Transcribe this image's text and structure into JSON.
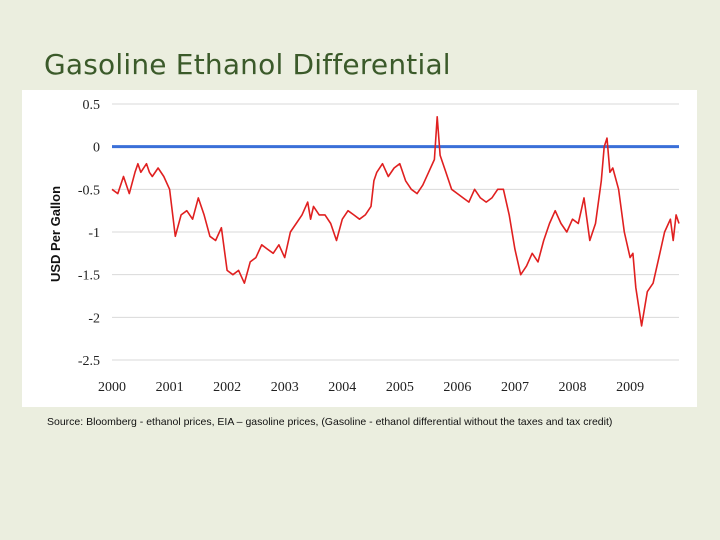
{
  "slide": {
    "title": "Gasoline Ethanol Differential",
    "source": "Source: Bloomberg - ethanol prices, EIA – gasoline prices, (Gasoline - ethanol differential without the taxes and tax credit)"
  },
  "chart_data": {
    "type": "line",
    "title": "",
    "xlabel": "",
    "ylabel": "USD Per Gallon",
    "xlim": [
      2000,
      2009.85
    ],
    "ylim": [
      -2.5,
      0.5
    ],
    "x_ticks": [
      "2000",
      "2001",
      "2002",
      "2003",
      "2004",
      "2005",
      "2006",
      "2007",
      "2008",
      "2009"
    ],
    "y_ticks": [
      "0.5",
      "0",
      "-0.5",
      "-1",
      "-1.5",
      "-2",
      "-2.5"
    ],
    "grid": "horizontal",
    "reference_line": {
      "y": 0,
      "color": "#3a6fd8"
    },
    "series": [
      {
        "color": "#e02020",
        "x": [
          2000.0,
          2000.1,
          2000.2,
          2000.3,
          2000.4,
          2000.45,
          2000.5,
          2000.6,
          2000.65,
          2000.7,
          2000.8,
          2000.9,
          2001.0,
          2001.1,
          2001.2,
          2001.3,
          2001.4,
          2001.5,
          2001.6,
          2001.7,
          2001.8,
          2001.9,
          2002.0,
          2002.1,
          2002.2,
          2002.3,
          2002.4,
          2002.5,
          2002.6,
          2002.7,
          2002.8,
          2002.9,
          2003.0,
          2003.1,
          2003.2,
          2003.3,
          2003.4,
          2003.45,
          2003.5,
          2003.6,
          2003.7,
          2003.8,
          2003.9,
          2004.0,
          2004.1,
          2004.2,
          2004.3,
          2004.4,
          2004.5,
          2004.55,
          2004.6,
          2004.7,
          2004.8,
          2004.9,
          2005.0,
          2005.1,
          2005.2,
          2005.3,
          2005.4,
          2005.5,
          2005.6,
          2005.65,
          2005.7,
          2005.8,
          2005.9,
          2006.0,
          2006.1,
          2006.2,
          2006.3,
          2006.4,
          2006.5,
          2006.6,
          2006.7,
          2006.8,
          2006.9,
          2007.0,
          2007.1,
          2007.2,
          2007.3,
          2007.4,
          2007.5,
          2007.6,
          2007.7,
          2007.8,
          2007.9,
          2008.0,
          2008.1,
          2008.2,
          2008.3,
          2008.4,
          2008.5,
          2008.55,
          2008.6,
          2008.65,
          2008.7,
          2008.8,
          2008.9,
          2009.0,
          2009.05,
          2009.1,
          2009.2,
          2009.3,
          2009.4,
          2009.5,
          2009.6,
          2009.7,
          2009.75,
          2009.8,
          2009.85
        ],
        "y": [
          -0.5,
          -0.55,
          -0.35,
          -0.55,
          -0.3,
          -0.2,
          -0.3,
          -0.2,
          -0.3,
          -0.35,
          -0.25,
          -0.35,
          -0.5,
          -1.05,
          -0.8,
          -0.75,
          -0.85,
          -0.6,
          -0.8,
          -1.05,
          -1.1,
          -0.95,
          -1.45,
          -1.5,
          -1.45,
          -1.6,
          -1.35,
          -1.3,
          -1.15,
          -1.2,
          -1.25,
          -1.15,
          -1.3,
          -1.0,
          -0.9,
          -0.8,
          -0.65,
          -0.85,
          -0.7,
          -0.8,
          -0.8,
          -0.9,
          -1.1,
          -0.85,
          -0.75,
          -0.8,
          -0.85,
          -0.8,
          -0.7,
          -0.4,
          -0.3,
          -0.2,
          -0.35,
          -0.25,
          -0.2,
          -0.4,
          -0.5,
          -0.55,
          -0.45,
          -0.3,
          -0.15,
          0.35,
          -0.1,
          -0.3,
          -0.5,
          -0.55,
          -0.6,
          -0.65,
          -0.5,
          -0.6,
          -0.65,
          -0.6,
          -0.5,
          -0.5,
          -0.8,
          -1.2,
          -1.5,
          -1.4,
          -1.25,
          -1.35,
          -1.1,
          -0.9,
          -0.75,
          -0.9,
          -1.0,
          -0.85,
          -0.9,
          -0.6,
          -1.1,
          -0.9,
          -0.4,
          0.0,
          0.1,
          -0.3,
          -0.25,
          -0.5,
          -1.0,
          -1.3,
          -1.25,
          -1.65,
          -2.1,
          -1.7,
          -1.6,
          -1.3,
          -1.0,
          -0.85,
          -1.1,
          -0.8,
          -0.9
        ]
      }
    ]
  }
}
